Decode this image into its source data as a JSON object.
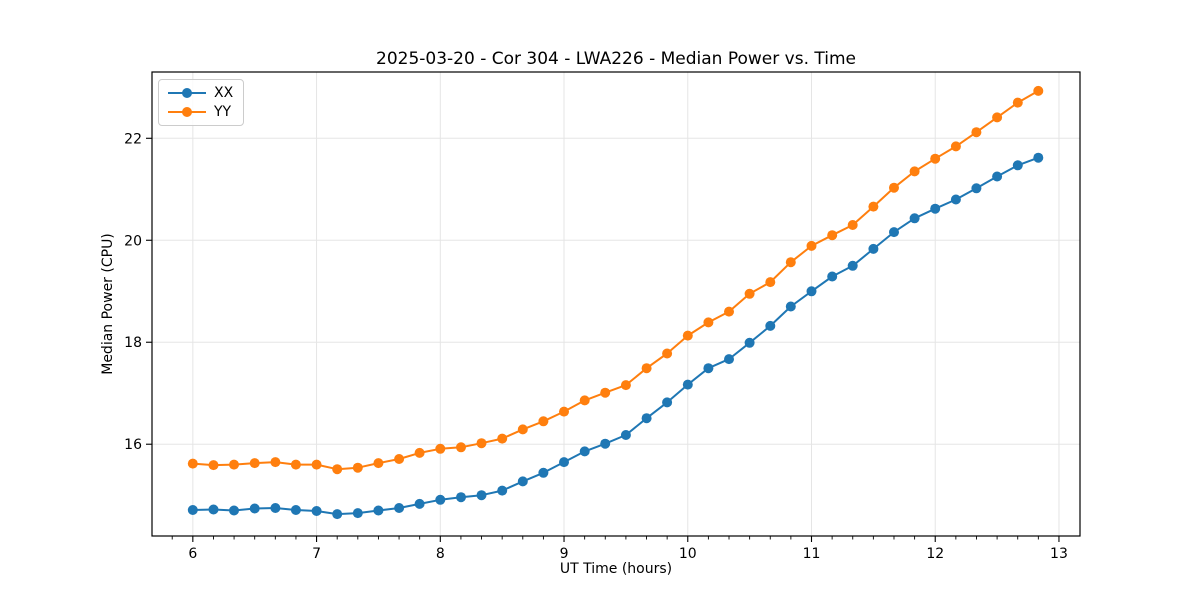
{
  "figure": {
    "background": "#ffffff"
  },
  "chart_data": {
    "type": "line",
    "title": "2025-03-20 - Cor 304 - LWA226 - Median Power vs. Time",
    "xlabel": "UT Time (hours)",
    "ylabel": "Median Power (CPU)",
    "xlim": [
      5.67,
      13.17
    ],
    "ylim": [
      14.2,
      23.3
    ],
    "x_ticks": [
      6,
      7,
      8,
      9,
      10,
      11,
      12,
      13
    ],
    "y_ticks": [
      16,
      18,
      20,
      22
    ],
    "x_minor_tick_step_hours": 0.1667,
    "grid": true,
    "grid_color": "#e5e5e5",
    "spine_color": "#000000",
    "legend_position": "upper-left",
    "x": [
      6.0,
      6.167,
      6.333,
      6.5,
      6.667,
      6.833,
      7.0,
      7.167,
      7.333,
      7.5,
      7.667,
      7.833,
      8.0,
      8.167,
      8.333,
      8.5,
      8.667,
      8.833,
      9.0,
      9.167,
      9.333,
      9.5,
      9.667,
      9.833,
      10.0,
      10.167,
      10.333,
      10.5,
      10.667,
      10.833,
      11.0,
      11.167,
      11.333,
      11.5,
      11.667,
      11.833,
      12.0,
      12.167,
      12.333,
      12.5,
      12.667,
      12.833
    ],
    "series": [
      {
        "name": "XX",
        "color": "#1f77b4",
        "values": [
          14.71,
          14.72,
          14.7,
          14.74,
          14.75,
          14.71,
          14.69,
          14.63,
          14.65,
          14.7,
          14.75,
          14.83,
          14.91,
          14.96,
          15.0,
          15.09,
          15.27,
          15.44,
          15.65,
          15.86,
          16.01,
          16.18,
          16.51,
          16.82,
          17.17,
          17.49,
          17.67,
          17.99,
          18.32,
          18.7,
          19.0,
          19.29,
          19.5,
          19.83,
          20.16,
          20.43,
          20.62,
          20.8,
          21.02,
          21.25,
          21.47,
          21.62
        ]
      },
      {
        "name": "YY",
        "color": "#ff7f0e",
        "values": [
          15.62,
          15.59,
          15.6,
          15.63,
          15.65,
          15.6,
          15.6,
          15.51,
          15.54,
          15.63,
          15.71,
          15.83,
          15.91,
          15.94,
          16.02,
          16.11,
          16.29,
          16.45,
          16.64,
          16.86,
          17.01,
          17.16,
          17.49,
          17.78,
          18.13,
          18.39,
          18.6,
          18.95,
          19.18,
          19.57,
          19.89,
          20.1,
          20.3,
          20.66,
          21.03,
          21.35,
          21.6,
          21.84,
          22.12,
          22.41,
          22.7,
          22.93
        ]
      }
    ]
  }
}
